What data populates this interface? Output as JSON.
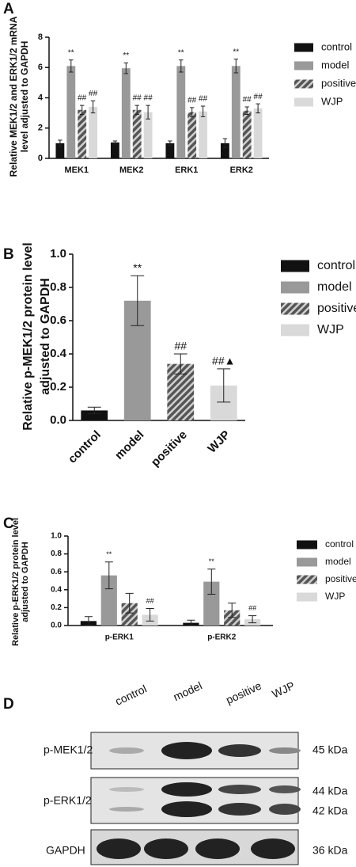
{
  "chart_data": [
    {
      "type": "bar",
      "panel": "A",
      "ylabel": [
        "Relative MEK1/2 and ERK1/2 mRNA",
        "level adjusted to GAPDH"
      ],
      "categories": [
        "MEK1",
        "MEK2",
        "ERK1",
        "ERK2"
      ],
      "ylim": [
        0,
        8
      ],
      "yticks": [
        0,
        2,
        4,
        6,
        8
      ],
      "series": [
        {
          "name": "control",
          "color": "#111111",
          "values": [
            1.0,
            1.05,
            1.0,
            1.0
          ],
          "errors": [
            0.2,
            0.1,
            0.15,
            0.3
          ]
        },
        {
          "name": "model",
          "color": "#999999",
          "values": [
            6.1,
            5.95,
            6.1,
            6.1
          ],
          "errors": [
            0.4,
            0.35,
            0.4,
            0.45
          ],
          "annotations": [
            "**",
            "**",
            "**",
            "**"
          ]
        },
        {
          "name": "positive",
          "color": "#555555",
          "hatch": true,
          "values": [
            3.2,
            3.2,
            3.05,
            3.15
          ],
          "errors": [
            0.3,
            0.3,
            0.3,
            0.25
          ],
          "annotations": [
            "##",
            "##",
            "##",
            "##"
          ]
        },
        {
          "name": "WJP",
          "color": "#d9d9d9",
          "values": [
            3.4,
            3.05,
            3.1,
            3.3
          ],
          "errors": [
            0.4,
            0.45,
            0.35,
            0.3
          ],
          "annotations": [
            "##",
            "##",
            "##",
            "##"
          ]
        }
      ]
    },
    {
      "type": "bar",
      "panel": "B",
      "ylabel": [
        "Relative p-MEK1/2 protein level",
        "adjusted to GAPDH"
      ],
      "categories": [
        "control",
        "model",
        "positive",
        "WJP"
      ],
      "ylim": [
        0,
        1.0
      ],
      "yticks": [
        {
          "value": 0,
          "label": "0.0"
        },
        0.2,
        0.4,
        0.6,
        0.8,
        {
          "value": 1,
          "label": "1.0"
        }
      ],
      "values": [
        0.06,
        0.72,
        0.34,
        0.21
      ],
      "errors": [
        0.02,
        0.15,
        0.06,
        0.1
      ],
      "colors": [
        "#111111",
        "#999999",
        "#555555",
        "#d9d9d9"
      ],
      "hatch": [
        false,
        false,
        true,
        false
      ],
      "annotations": [
        null,
        "**",
        "##",
        "##▲"
      ]
    },
    {
      "type": "bar",
      "panel": "C",
      "ylabel": [
        "Relative p-ERK1/2 protein level",
        "adjusted to GAPDH"
      ],
      "categories": [
        "p-ERK1",
        "p-ERK2"
      ],
      "ylim": [
        0,
        1.0
      ],
      "yticks": [
        {
          "value": 0,
          "label": "0.0"
        },
        0.2,
        0.4,
        0.6,
        0.8,
        {
          "value": 1,
          "label": "1.0"
        }
      ],
      "series": [
        {
          "name": "control",
          "color": "#111111",
          "values": [
            0.05,
            0.03
          ],
          "errors": [
            0.05,
            0.03
          ]
        },
        {
          "name": "model",
          "color": "#999999",
          "values": [
            0.56,
            0.49
          ],
          "errors": [
            0.15,
            0.14
          ],
          "annotations": [
            "**",
            "**"
          ]
        },
        {
          "name": "positive",
          "color": "#555555",
          "hatch": true,
          "values": [
            0.25,
            0.17
          ],
          "errors": [
            0.11,
            0.08
          ]
        },
        {
          "name": "WJP",
          "color": "#d9d9d9",
          "values": [
            0.12,
            0.07
          ],
          "errors": [
            0.07,
            0.04
          ],
          "annotations": [
            "##",
            "##"
          ]
        }
      ]
    }
  ],
  "blot": {
    "panel": "D",
    "lanes": [
      "control",
      "model",
      "positive",
      "WJP"
    ],
    "rows": [
      "p-MEK1/2",
      "p-ERK1/2",
      "GAPDH"
    ],
    "sizes": [
      "45 kDa",
      "44 kDa",
      "42 kDa",
      "36 kDa"
    ]
  }
}
